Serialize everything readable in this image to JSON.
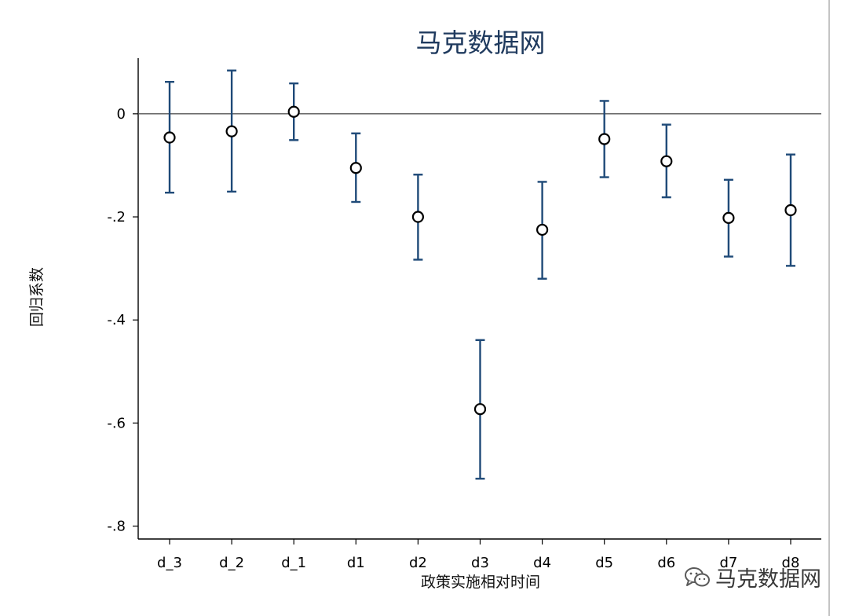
{
  "chart_data": {
    "type": "scatter",
    "subtype": "coefficient-plot-with-confidence-intervals",
    "title": "马克数据网",
    "xlabel": "政策实施相对时间",
    "ylabel": "回归系数",
    "categories": [
      "d_3",
      "d_2",
      "d_1",
      "d1",
      "d2",
      "d3",
      "d4",
      "d5",
      "d6",
      "d7",
      "d8"
    ],
    "series": [
      {
        "values": [
          -0.046,
          -0.034,
          0.004,
          -0.105,
          -0.2,
          -0.573,
          -0.225,
          -0.049,
          -0.092,
          -0.202,
          -0.187
        ],
        "lower": [
          -0.153,
          -0.151,
          -0.051,
          -0.171,
          -0.283,
          -0.708,
          -0.32,
          -0.123,
          -0.162,
          -0.277,
          -0.295
        ],
        "upper": [
          0.062,
          0.084,
          0.059,
          -0.038,
          -0.118,
          -0.439,
          -0.132,
          0.025,
          -0.021,
          -0.128,
          -0.079
        ]
      }
    ],
    "yticks": [
      0,
      -0.2,
      -0.4,
      -0.6,
      -0.8
    ],
    "ytick_labels": [
      "0",
      "-.2",
      "-.4",
      "-.6",
      "-.8"
    ],
    "ylim": [
      -0.825,
      0.108
    ],
    "reference_line_y": 0,
    "grid": false,
    "colors": {
      "ci": "#1f4a78",
      "marker": "#000000",
      "title": "#1f3a5e"
    }
  },
  "watermark": {
    "text": "马克数据网",
    "icon": "wechat-icon"
  }
}
